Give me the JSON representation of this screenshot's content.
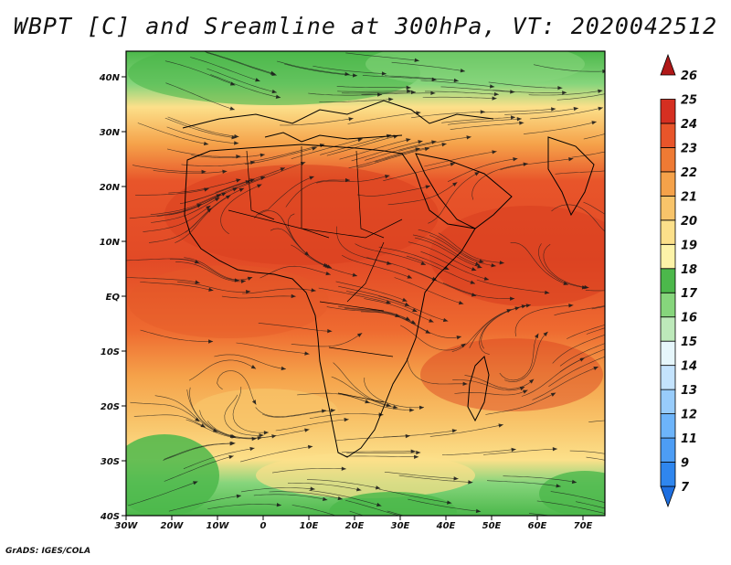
{
  "title": "WBPT [C] and Sreamline at 300hPa, VT: 2020042512",
  "credit": "GrADS: IGES/COLA",
  "map": {
    "lat_labels": [
      "40N",
      "30N",
      "20N",
      "10N",
      "EQ",
      "10S",
      "20S",
      "30S",
      "40S"
    ],
    "lon_labels": [
      "30W",
      "20W",
      "10W",
      "0",
      "10E",
      "20E",
      "30E",
      "40E",
      "50E",
      "60E",
      "70E"
    ]
  },
  "colorbar": {
    "levels": [
      "7",
      "9",
      "11",
      "12",
      "13",
      "14",
      "15",
      "16",
      "17",
      "18",
      "19",
      "20",
      "21",
      "22",
      "23",
      "24",
      "25",
      "26"
    ],
    "colors": [
      "#1e6fe0",
      "#2f86ee",
      "#4d9df5",
      "#6db4fa",
      "#98ccfb",
      "#c4e3fd",
      "#e6f6fb",
      "#bde9ba",
      "#86d57c",
      "#4cb84b",
      "#fdf3a8",
      "#fce08a",
      "#f8c46a",
      "#f5a24a",
      "#ee7a34",
      "#e8552a",
      "#d52f21",
      "#b01818"
    ]
  }
}
